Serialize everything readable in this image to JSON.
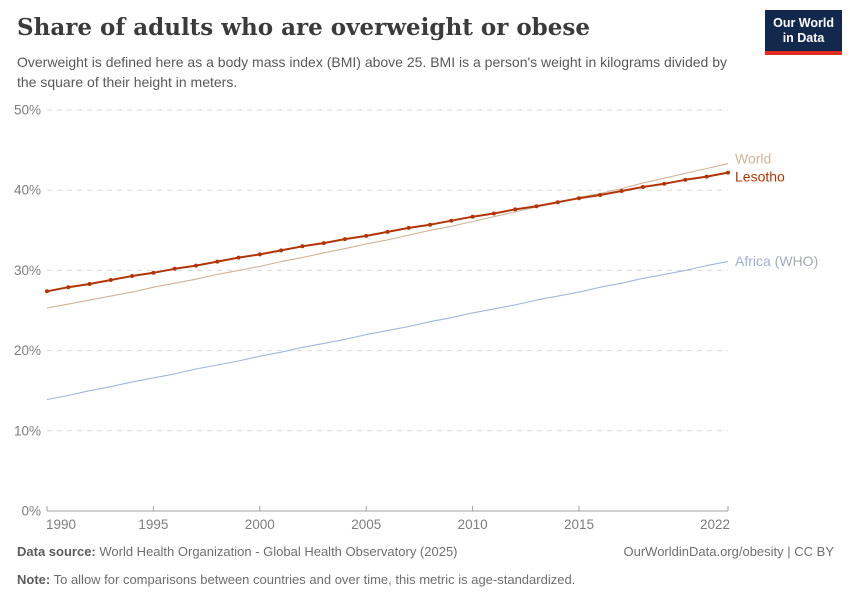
{
  "header": {
    "title": "Share of adults who are overweight or obese",
    "subtitle": "Overweight is defined here as a body mass index (BMI) above 25. BMI is a person's weight in kilograms divided by the square of their height in meters.",
    "logo": {
      "line1": "Our World",
      "line2": "in Data",
      "bg_color": "#12294d",
      "stripe_color": "#e02c21"
    }
  },
  "footer": {
    "datasource_label": "Data source:",
    "datasource_value": " World Health Organization - Global Health Observatory (2025)",
    "note_label": "Note:",
    "note_value": " To allow for comparisons between countries and over time, this metric is age-standardized.",
    "rights": "OurWorldinData.org/obesity | CC BY"
  },
  "colors": {
    "grid": "#dadada",
    "axis": "#a1a1a1",
    "tick_label": "#7d7d7d",
    "world": "#cdb49a",
    "lesotho": "#b13507",
    "africa": "#a2b6d4",
    "africa_label": "#9fb1d1",
    "africa_suffix_label": "#a5abb5"
  },
  "chart_data": {
    "type": "line",
    "title": "Share of adults who are overweight or obese",
    "xlabel": "",
    "ylabel": "",
    "unit": "%",
    "xlim": [
      1990,
      2022
    ],
    "ylim": [
      0,
      50
    ],
    "x_ticks": [
      1990,
      1995,
      2000,
      2005,
      2010,
      2015,
      2022
    ],
    "y_ticks": [
      0,
      10,
      20,
      30,
      40,
      50
    ],
    "grid": "horizontal-dashed",
    "legend_position": "end-of-line-labels",
    "x": [
      1990,
      1991,
      1992,
      1993,
      1994,
      1995,
      1996,
      1997,
      1998,
      1999,
      2000,
      2001,
      2002,
      2003,
      2004,
      2005,
      2006,
      2007,
      2008,
      2009,
      2010,
      2011,
      2012,
      2013,
      2014,
      2015,
      2016,
      2017,
      2018,
      2019,
      2020,
      2021,
      2022
    ],
    "series": [
      {
        "name": "World",
        "color": "#cdb49a",
        "line_width": 1.1,
        "marker": false,
        "values": [
          25.3,
          25.8,
          26.3,
          26.8,
          27.3,
          27.9,
          28.4,
          28.9,
          29.5,
          30.0,
          30.5,
          31.1,
          31.6,
          32.2,
          32.7,
          33.3,
          33.8,
          34.4,
          35.0,
          35.5,
          36.1,
          36.7,
          37.3,
          37.9,
          38.4,
          39.1,
          39.6,
          40.2,
          40.9,
          41.5,
          42.1,
          42.7,
          43.3
        ]
      },
      {
        "name": "Lesotho",
        "color": "#b13507",
        "line_width": 2,
        "marker": true,
        "values": [
          27.4,
          27.9,
          28.3,
          28.8,
          29.3,
          29.7,
          30.2,
          30.6,
          31.1,
          31.6,
          32.0,
          32.5,
          33.0,
          33.4,
          33.9,
          34.3,
          34.8,
          35.3,
          35.7,
          36.2,
          36.7,
          37.1,
          37.6,
          38.0,
          38.5,
          39.0,
          39.4,
          39.9,
          40.4,
          40.8,
          41.3,
          41.7,
          42.2
        ]
      },
      {
        "name": "Africa (WHO)",
        "color": "#a2b6d4",
        "line_width": 1.1,
        "marker": false,
        "label_parts": [
          {
            "text": "Africa",
            "color": "#9fb1d1"
          },
          {
            "text": " (WHO)",
            "color": "#a5abb5"
          }
        ],
        "values": [
          13.9,
          14.4,
          15.0,
          15.5,
          16.1,
          16.6,
          17.1,
          17.7,
          18.2,
          18.7,
          19.3,
          19.8,
          20.4,
          20.9,
          21.4,
          22.0,
          22.5,
          23.0,
          23.6,
          24.1,
          24.7,
          25.2,
          25.7,
          26.3,
          26.8,
          27.3,
          27.9,
          28.4,
          29.0,
          29.5,
          30.0,
          30.6,
          31.1
        ]
      }
    ]
  }
}
